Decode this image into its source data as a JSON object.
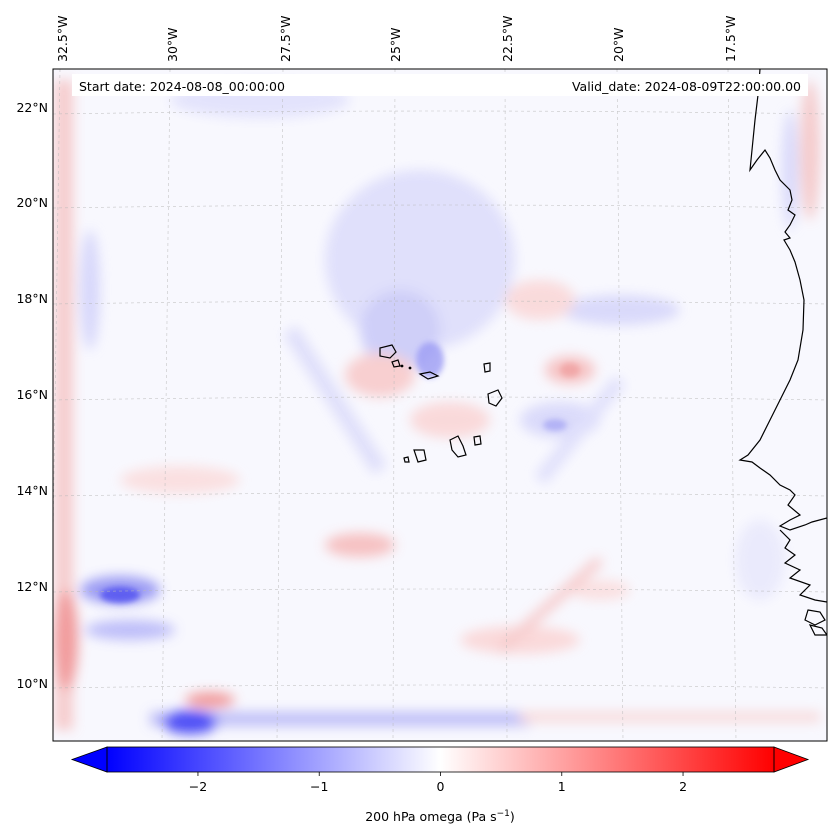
{
  "header": {
    "start_date": "Start date: 2024-08-08_00:00:00",
    "valid_date": "Valid_date: 2024-08-09T22:00:00.00"
  },
  "axes": {
    "longitude_labels": [
      "32.5°W",
      "30°W",
      "27.5°W",
      "25°W",
      "22.5°W",
      "20°W",
      "17.5°W"
    ],
    "latitude_labels": [
      "22°N",
      "20°N",
      "18°N",
      "16°N",
      "14°N",
      "12°N",
      "10°N"
    ]
  },
  "colorbar": {
    "label": "200 hPa omega (Pa s",
    "label_exponent": "−1",
    "label_close": ")",
    "ticks": [
      "−2",
      "−1",
      "0",
      "1",
      "2"
    ],
    "range": [
      -2.75,
      2.75
    ],
    "low_color": "#0000ff",
    "mid_color": "#ffffff",
    "high_color": "#ff0000"
  },
  "map": {
    "variable": "200 hPa omega",
    "extent_lon": [
      -33.0,
      -15.5
    ],
    "extent_lat": [
      8.8,
      22.8
    ]
  }
}
